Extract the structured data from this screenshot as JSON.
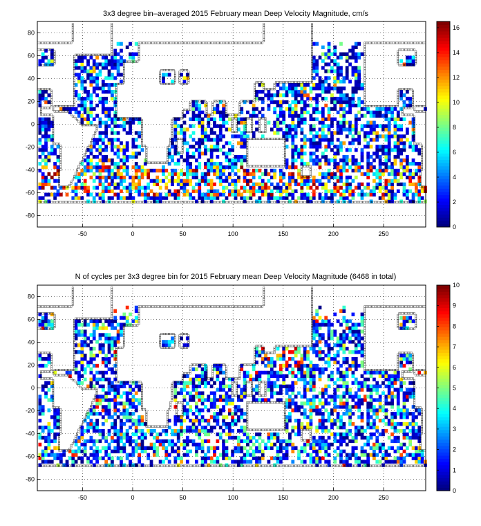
{
  "chart_data": [
    {
      "type": "heatmap",
      "title": "3x3 degree bin–averaged 2015 February mean Deep Velocity Magnitude, cm/s",
      "xlabel": "",
      "ylabel": "",
      "xlim": [
        -95,
        292
      ],
      "ylim": [
        -90,
        90
      ],
      "xticks": [
        -50,
        0,
        50,
        100,
        150,
        200,
        250
      ],
      "yticks": [
        -80,
        -60,
        -40,
        -20,
        0,
        20,
        40,
        60,
        80
      ],
      "grid": true,
      "colorbar": {
        "min": 0,
        "max": 16.5,
        "ticks": [
          0,
          2,
          4,
          6,
          8,
          10,
          12,
          14,
          16
        ],
        "colormap": "jet"
      },
      "bin_size_deg": 3,
      "seed": 7,
      "field": "velocity"
    },
    {
      "type": "heatmap",
      "title": "N of cycles per 3x3 degree bin for 2015 February mean Deep Velocity Magnitude (6468 in total)",
      "xlabel": "",
      "ylabel": "",
      "xlim": [
        -95,
        292
      ],
      "ylim": [
        -90,
        90
      ],
      "xticks": [
        -50,
        0,
        50,
        100,
        150,
        200,
        250
      ],
      "yticks": [
        -80,
        -60,
        -40,
        -20,
        0,
        20,
        40,
        60,
        80
      ],
      "grid": true,
      "colorbar": {
        "min": 0,
        "max": 10,
        "ticks": [
          0,
          1,
          2,
          3,
          4,
          5,
          6,
          7,
          8,
          9,
          10
        ],
        "colormap": "jet"
      },
      "bin_size_deg": 3,
      "seed": 23,
      "field": "count"
    }
  ]
}
